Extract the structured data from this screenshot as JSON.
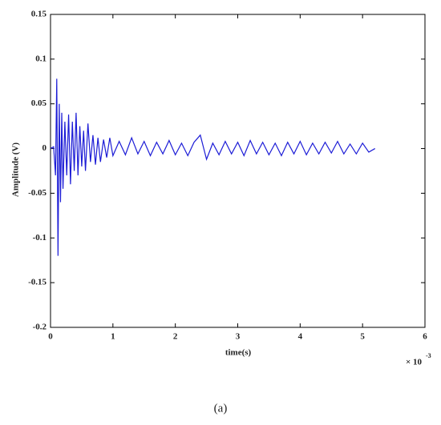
{
  "chart_data": {
    "type": "line",
    "x_label": "time(s)",
    "y_label": "Amplitude (V)",
    "x_multiplier": "× 10",
    "x_multiplier_exp": "-3",
    "caption": "(a)",
    "color": "#1c1cd6",
    "x": [
      0,
      0.05,
      0.08,
      0.1,
      0.12,
      0.14,
      0.16,
      0.18,
      0.2,
      0.23,
      0.26,
      0.29,
      0.32,
      0.35,
      0.38,
      0.41,
      0.44,
      0.47,
      0.5,
      0.53,
      0.56,
      0.6,
      0.64,
      0.68,
      0.72,
      0.76,
      0.8,
      0.85,
      0.9,
      0.95,
      1.0,
      1.1,
      1.2,
      1.3,
      1.4,
      1.5,
      1.6,
      1.7,
      1.8,
      1.9,
      2.0,
      2.1,
      2.2,
      2.3,
      2.4,
      2.5,
      2.6,
      2.7,
      2.8,
      2.9,
      3.0,
      3.1,
      3.2,
      3.3,
      3.4,
      3.5,
      3.6,
      3.7,
      3.8,
      3.9,
      4.0,
      4.1,
      4.2,
      4.3,
      4.4,
      4.5,
      4.6,
      4.7,
      4.8,
      4.9,
      5.0,
      5.1,
      5.2
    ],
    "values": [
      0,
      0.002,
      -0.03,
      0.078,
      -0.12,
      0.05,
      -0.06,
      0.04,
      -0.045,
      0.03,
      -0.03,
      0.038,
      -0.04,
      0.03,
      -0.025,
      0.04,
      -0.03,
      0.025,
      -0.02,
      0.02,
      -0.025,
      0.028,
      -0.015,
      0.015,
      -0.018,
      0.012,
      -0.015,
      0.01,
      -0.01,
      0.012,
      -0.008,
      0.008,
      -0.007,
      0.012,
      -0.006,
      0.008,
      -0.008,
      0.007,
      -0.006,
      0.009,
      -0.007,
      0.006,
      -0.008,
      0.007,
      0.015,
      -0.012,
      0.006,
      -0.007,
      0.008,
      -0.006,
      0.007,
      -0.008,
      0.009,
      -0.006,
      0.007,
      -0.007,
      0.006,
      -0.008,
      0.007,
      -0.006,
      0.008,
      -0.007,
      0.006,
      -0.006,
      0.007,
      -0.005,
      0.008,
      -0.006,
      0.005,
      -0.006,
      0.006,
      -0.004,
      0
    ],
    "xlim": [
      0,
      6
    ],
    "xticks": [
      0,
      1,
      2,
      3,
      4,
      5,
      6
    ],
    "ylim": [
      -0.2,
      0.15
    ],
    "yticks": [
      -0.2,
      -0.15,
      -0.1,
      -0.05,
      0,
      0.05,
      0.1,
      0.15
    ]
  }
}
